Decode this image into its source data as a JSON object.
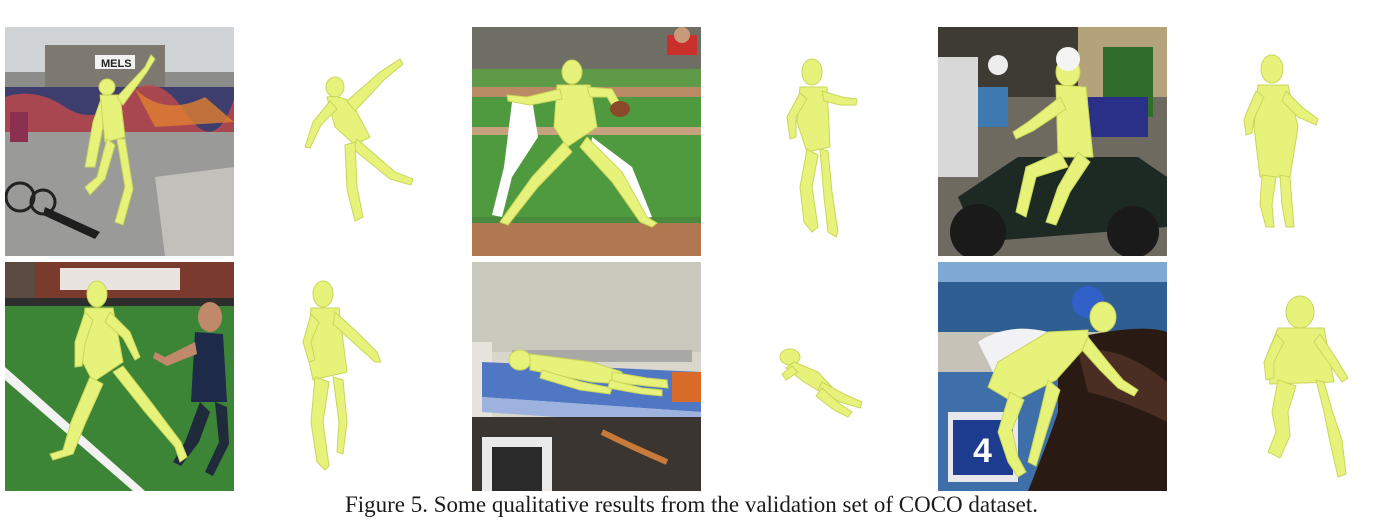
{
  "figure": {
    "caption": "Figure 5. Some qualitative results from the validation set of COCO dataset.",
    "mesh_color": "#e6f27a",
    "rows": [
      [
        {
          "scene": "skateboarder at graffiti skatepark",
          "sign_text": "MELS"
        },
        {
          "scene": "baseball pitcher on mound"
        },
        {
          "scene": "scooter rider on street"
        }
      ],
      [
        {
          "scene": "soccer players on field"
        },
        {
          "scene": "patient lying on hospital bed"
        },
        {
          "scene": "jockey on horse",
          "sign_text": "4"
        }
      ]
    ]
  }
}
